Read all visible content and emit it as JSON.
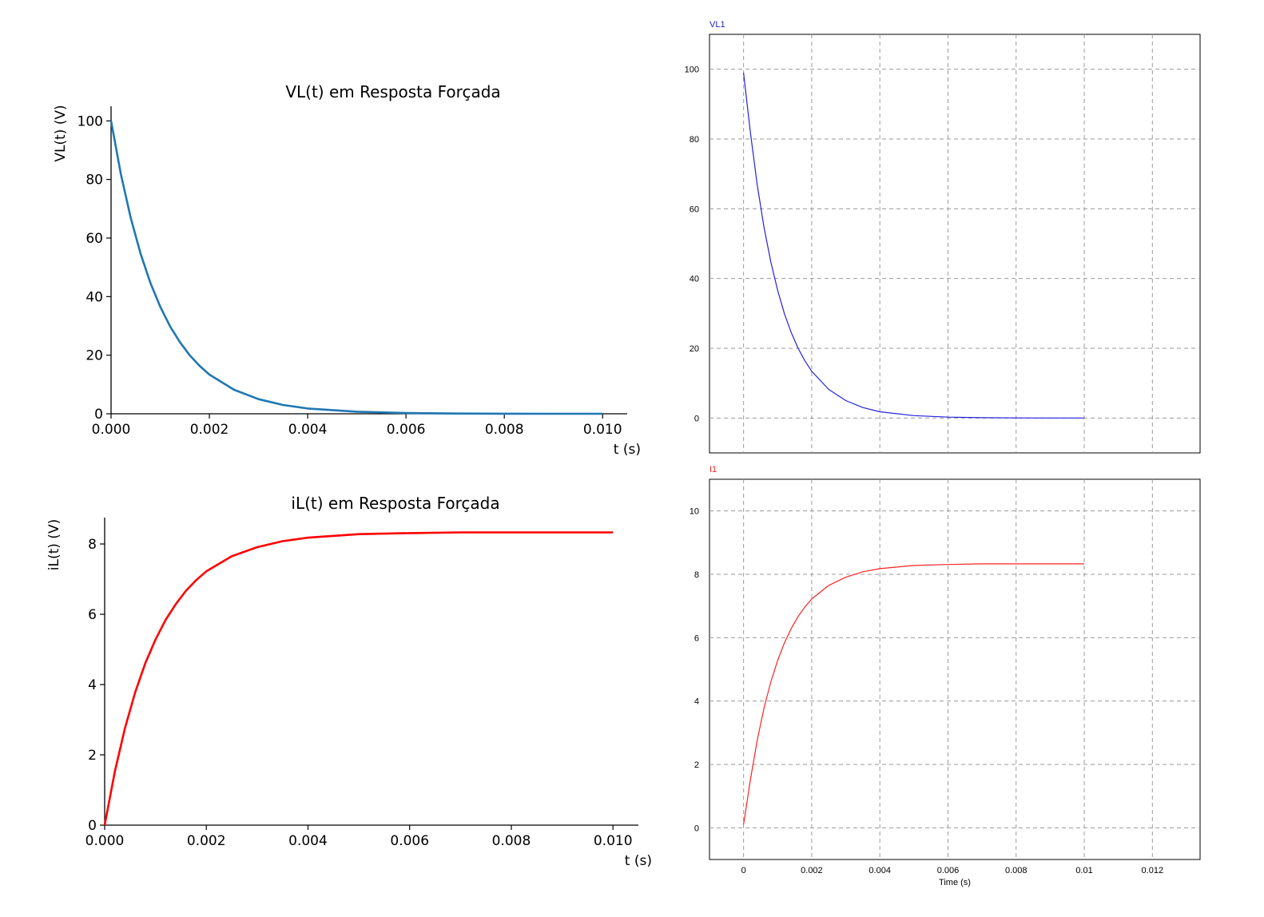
{
  "chart_data": [
    {
      "type": "line",
      "title": "VL(t) em Resposta Forçada",
      "xlabel": "t (s)",
      "ylabel": "VL(t) (V)",
      "xticks": [
        "0.000",
        "0.002",
        "0.004",
        "0.006",
        "0.008",
        "0.010"
      ],
      "yticks": [
        "0",
        "20",
        "40",
        "60",
        "80",
        "100"
      ],
      "xlim": [
        0,
        0.0105
      ],
      "ylim": [
        0,
        105
      ],
      "grid": false,
      "series": [
        {
          "color": "#1f77b4",
          "x": [
            0,
            0.0002,
            0.0004,
            0.0006,
            0.0008,
            0.001,
            0.0012,
            0.0014,
            0.0016,
            0.0018,
            0.002,
            0.0025,
            0.003,
            0.0035,
            0.004,
            0.005,
            0.006,
            0.007,
            0.008,
            0.009,
            0.01
          ],
          "y": [
            100,
            81.8,
            66.9,
            54.7,
            44.7,
            36.6,
            29.9,
            24.5,
            20.0,
            16.4,
            13.4,
            8.2,
            5.0,
            3.0,
            1.8,
            0.7,
            0.25,
            0.09,
            0.03,
            0.01,
            0.0
          ]
        }
      ]
    },
    {
      "type": "line",
      "title": "iL(t) em Resposta Forçada",
      "xlabel": "t (s)",
      "ylabel": "iL(t) (V)",
      "xticks": [
        "0.000",
        "0.002",
        "0.004",
        "0.006",
        "0.008",
        "0.010"
      ],
      "yticks": [
        "0",
        "2",
        "4",
        "6",
        "8"
      ],
      "xlim": [
        0,
        0.0105
      ],
      "ylim": [
        0,
        8.75
      ],
      "grid": false,
      "series": [
        {
          "color": "#ff0000",
          "x": [
            0,
            0.0002,
            0.0004,
            0.0006,
            0.0008,
            0.001,
            0.0012,
            0.0014,
            0.0016,
            0.0018,
            0.002,
            0.0025,
            0.003,
            0.0035,
            0.004,
            0.005,
            0.006,
            0.007,
            0.008,
            0.009,
            0.01
          ],
          "y": [
            0,
            1.52,
            2.76,
            3.78,
            4.61,
            5.28,
            5.84,
            6.29,
            6.67,
            6.97,
            7.22,
            7.65,
            7.91,
            8.08,
            8.18,
            8.28,
            8.31,
            8.33,
            8.33,
            8.33,
            8.33
          ]
        }
      ]
    },
    {
      "type": "line",
      "title": "",
      "legend": "VL1",
      "xlabel": "",
      "ylabel": "",
      "yticks": [
        "0",
        "20",
        "40",
        "60",
        "80",
        "100"
      ],
      "xlim": [
        -0.001,
        0.0134
      ],
      "ylim": [
        -10,
        110
      ],
      "grid": true,
      "series": [
        {
          "name": "VL1",
          "color": "#2222dd",
          "x": [
            0,
            0.0002,
            0.0004,
            0.0006,
            0.0008,
            0.001,
            0.0012,
            0.0014,
            0.0016,
            0.0018,
            0.002,
            0.0025,
            0.003,
            0.0035,
            0.004,
            0.005,
            0.006,
            0.007,
            0.008,
            0.009,
            0.01
          ],
          "y": [
            99,
            81.8,
            66.9,
            54.7,
            44.7,
            36.6,
            29.9,
            24.5,
            20.0,
            16.4,
            13.4,
            8.2,
            5.0,
            3.0,
            1.8,
            0.7,
            0.25,
            0.09,
            0.03,
            0.01,
            0.0
          ]
        }
      ]
    },
    {
      "type": "line",
      "title": "",
      "legend": "I1",
      "xlabel": "Time (s)",
      "ylabel": "",
      "xticks": [
        "0",
        "0.002",
        "0.004",
        "0.006",
        "0.008",
        "0.01",
        "0.012"
      ],
      "yticks": [
        "0",
        "2",
        "4",
        "6",
        "8",
        "10"
      ],
      "xlim": [
        -0.001,
        0.0134
      ],
      "ylim": [
        -1,
        11
      ],
      "grid": true,
      "series": [
        {
          "name": "I1",
          "color": "#ff2222",
          "x": [
            0,
            0.0002,
            0.0004,
            0.0006,
            0.0008,
            0.001,
            0.0012,
            0.0014,
            0.0016,
            0.0018,
            0.002,
            0.0025,
            0.003,
            0.0035,
            0.004,
            0.005,
            0.006,
            0.007,
            0.008,
            0.009,
            0.01
          ],
          "y": [
            0.1,
            1.52,
            2.76,
            3.78,
            4.61,
            5.28,
            5.84,
            6.29,
            6.67,
            6.97,
            7.22,
            7.65,
            7.91,
            8.08,
            8.18,
            8.28,
            8.31,
            8.33,
            8.33,
            8.33,
            8.33
          ]
        }
      ]
    }
  ]
}
